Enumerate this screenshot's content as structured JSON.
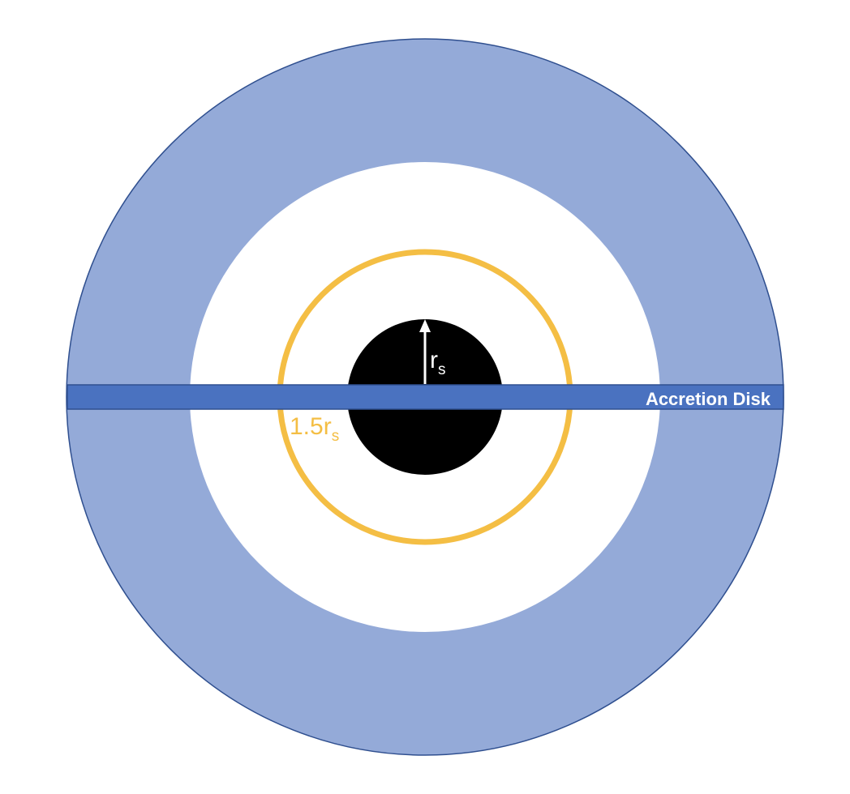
{
  "labels": {
    "disk_label": "Accretion Disk",
    "photon_sphere_main": "1.5r",
    "photon_sphere_sub": "s",
    "schwarzschild_main": "r",
    "schwarzschild_sub": "s"
  },
  "colors": {
    "outer_ring_fill": "#94aad8",
    "outer_ring_stroke": "#2f4f8f",
    "disk_fill": "#4a72c0",
    "disk_stroke": "#2f4f8f",
    "disk_label_color": "#ffffff",
    "photon_sphere_color": "#f4be44",
    "black_hole_color": "#000000",
    "arrow_color": "#ffffff",
    "background": "#ffffff"
  }
}
